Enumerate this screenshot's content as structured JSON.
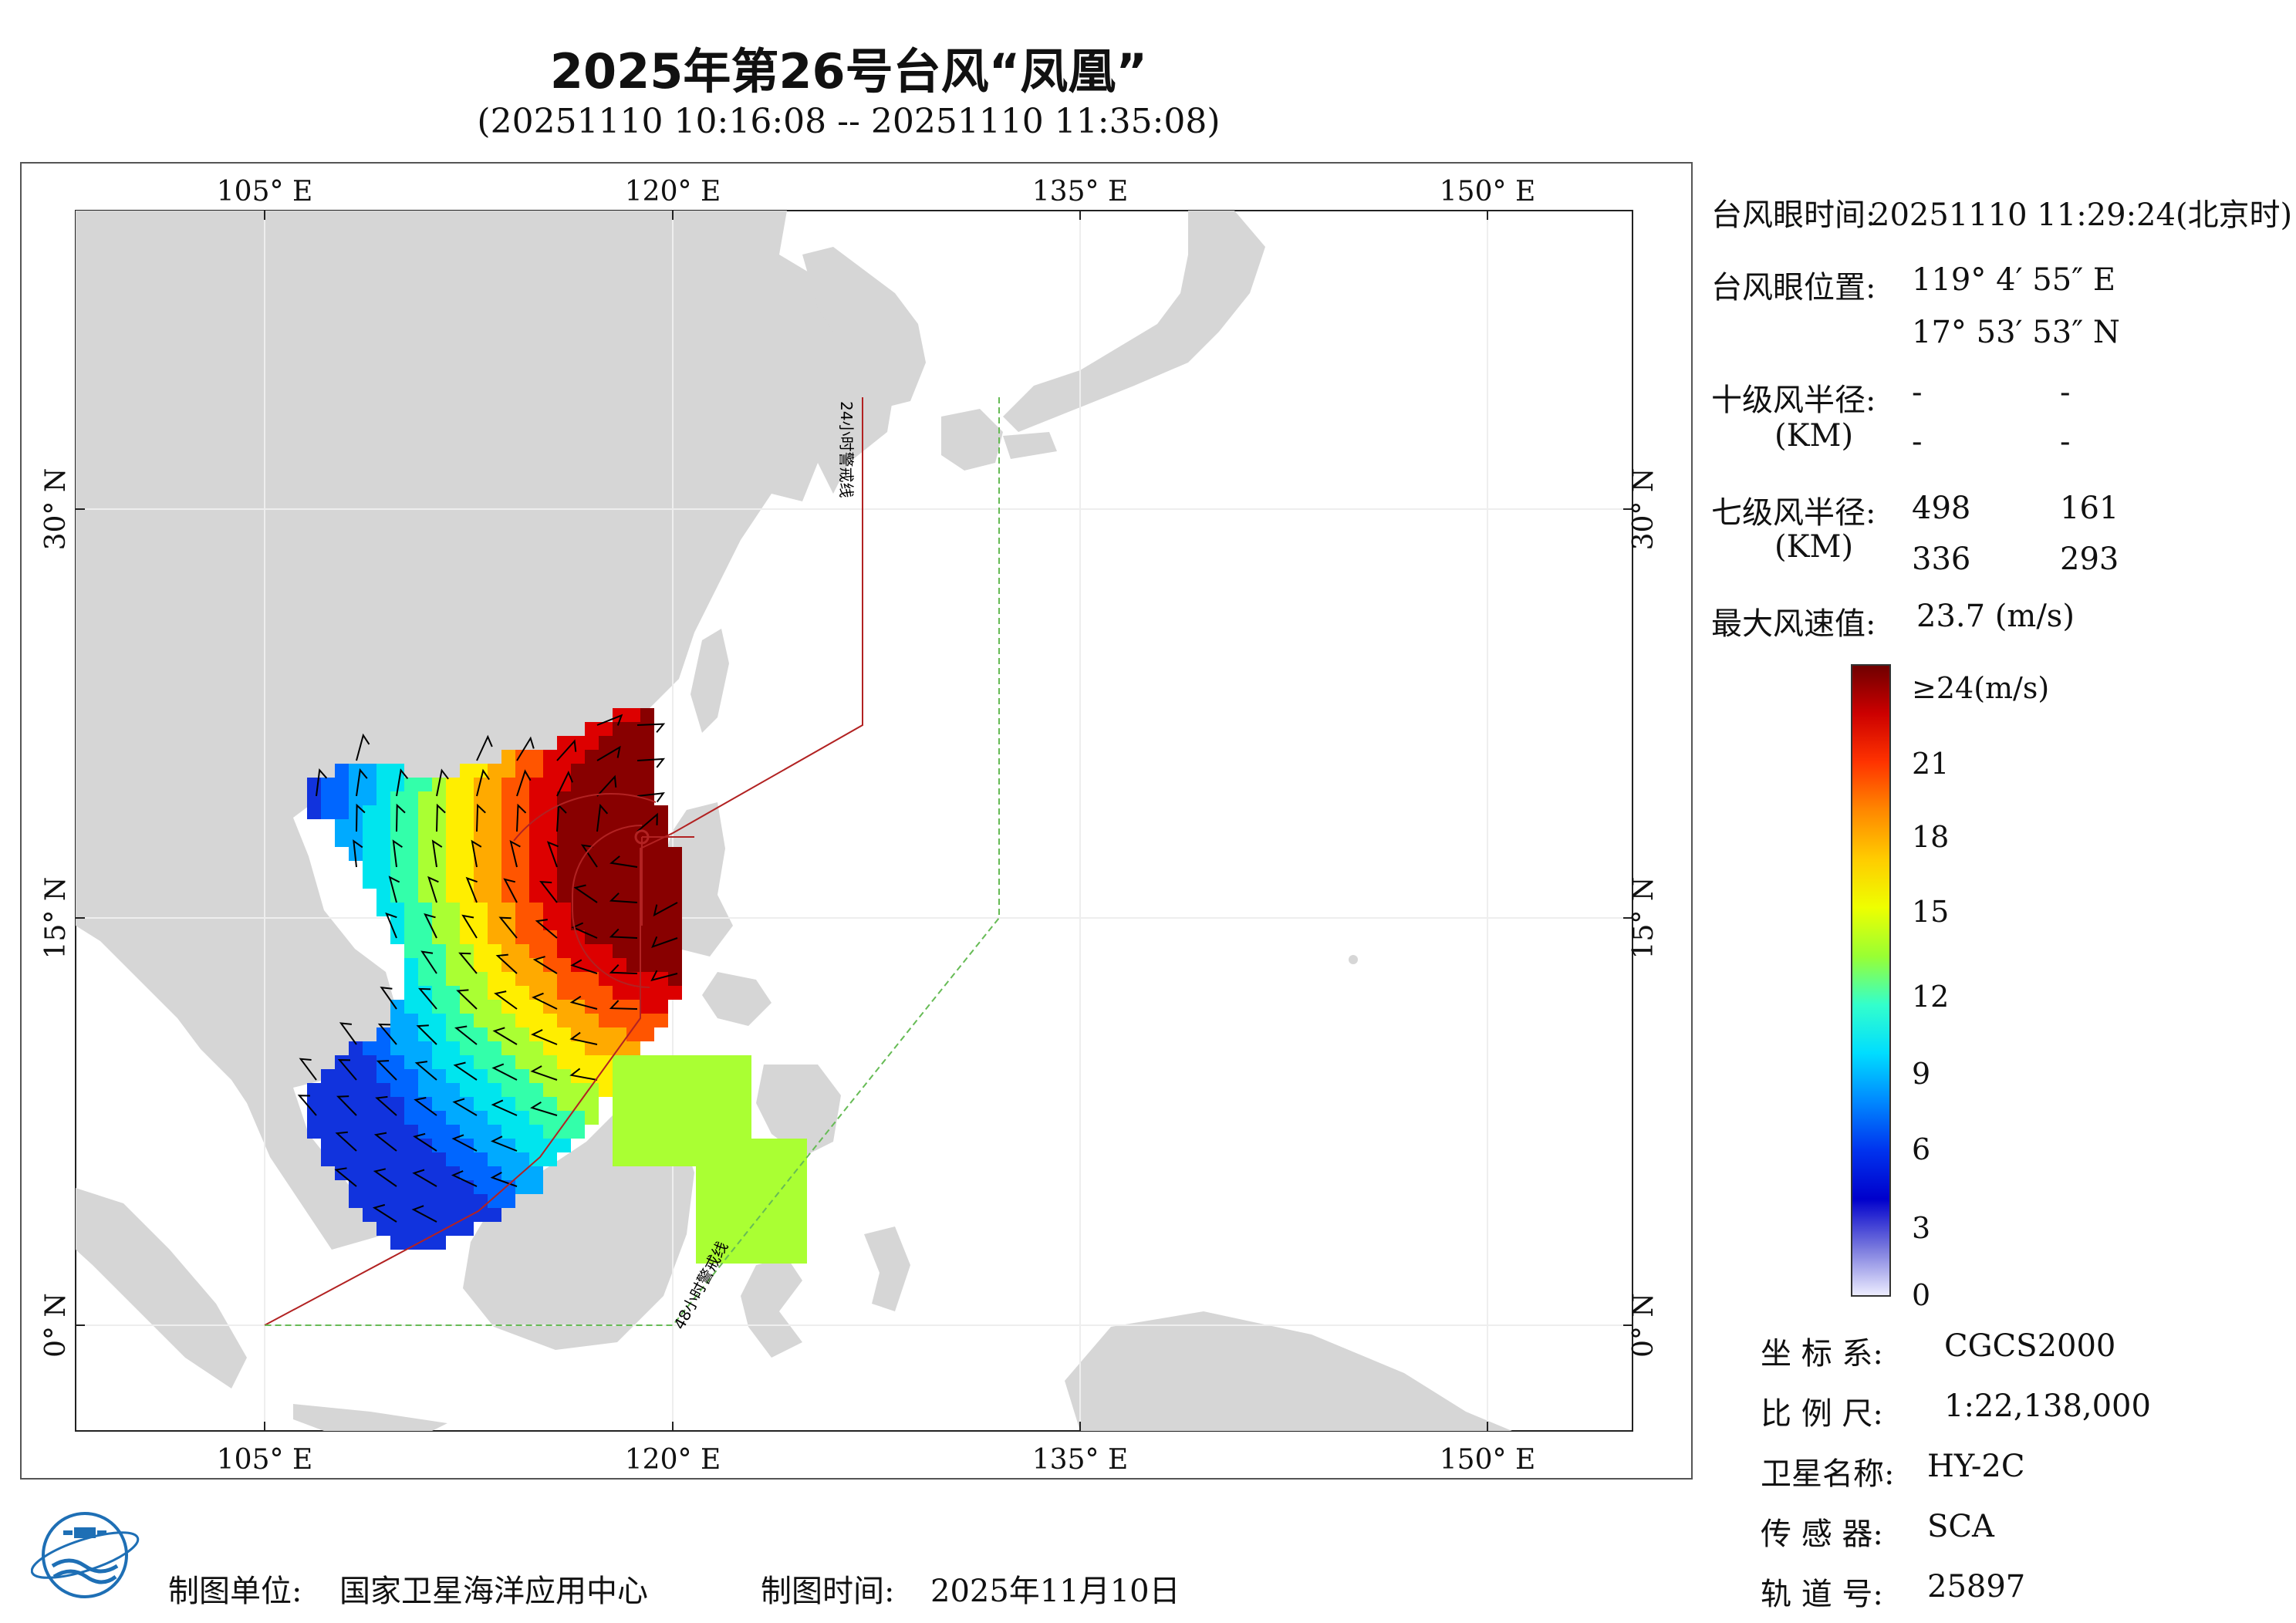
{
  "title": "2025年第26号台风“凤凰”",
  "subtitle": "(20251110 10:16:08 -- 20251110 11:35:08)",
  "map": {
    "top_lon_labels": [
      "105° E",
      "120° E",
      "135° E",
      "150° E"
    ],
    "bottom_lon_labels": [
      "105° E",
      "120° E",
      "135° E",
      "150° E"
    ],
    "left_lat_labels": [
      "30° N",
      "15° N",
      "0° N"
    ],
    "right_lat_labels": [
      "30° N",
      "15° N",
      "0° N"
    ],
    "warning_line_24h": "24小时警戒线",
    "warning_line_48h": "48小时警戒线",
    "colors": {
      "land": "#d6d6d6",
      "ocean": "#ffffff",
      "line24": "#b22222",
      "line48": "#66bb55"
    }
  },
  "info": {
    "eye_time_label": "台风眼时间:",
    "eye_time_value": "20251110 11:29:24(北京时)",
    "eye_pos_label": "台风眼位置:",
    "eye_lon": "119° 4′ 55″ E",
    "eye_lat": "17° 53′ 53″ N",
    "r10_label": "十级风半径:",
    "r10_unit": "(KM)",
    "r10_values": [
      "-",
      "-",
      "-",
      "-"
    ],
    "r7_label": "七级风半径:",
    "r7_unit": "(KM)",
    "r7_values": [
      "498",
      "161",
      "336",
      "293"
    ],
    "max_wind_label": "最大风速值:",
    "max_wind_value": "23.7  (m/s)"
  },
  "colorbar": {
    "labels": [
      "≥24(m/s)",
      "21",
      "18",
      "15",
      "12",
      "9",
      "6",
      "3",
      "0"
    ],
    "stops": [
      "#6e0000",
      "#cc0000",
      "#ff3300",
      "#ff8800",
      "#ffcc00",
      "#eeff00",
      "#99ff33",
      "#33ffcc",
      "#00ddff",
      "#0088ff",
      "#0033ee",
      "#0000cc",
      "#7777dd",
      "#eeeeff"
    ]
  },
  "meta": {
    "crs_label": "坐 标 系:",
    "crs_value": "CGCS2000",
    "scale_label": "比 例 尺:",
    "scale_value": "1:22,138,000",
    "sat_label": "卫星名称:",
    "sat_value": "HY-2C",
    "sensor_label": "传 感 器:",
    "sensor_value": "SCA",
    "orbit_label": "轨 道 号:",
    "orbit_value": "25897"
  },
  "footer": {
    "unit_label": "制图单位:",
    "unit_value": "国家卫星海洋应用中心",
    "time_label": "制图时间:",
    "time_value": "2025年11月10日"
  }
}
